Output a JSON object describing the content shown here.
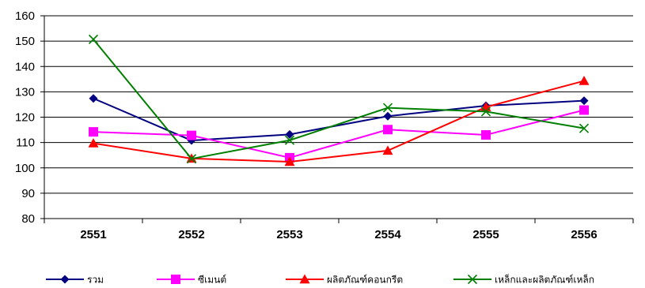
{
  "chart_data": {
    "type": "line",
    "title": "",
    "xlabel": "",
    "ylabel": "",
    "categories": [
      "2551",
      "2552",
      "2553",
      "2554",
      "2555",
      "2556"
    ],
    "ylim": [
      80,
      160
    ],
    "yticks": [
      80,
      90,
      100,
      110,
      120,
      130,
      140,
      150,
      160
    ],
    "grid": true,
    "legend_position": "bottom",
    "series": [
      {
        "name": "รวม",
        "color": "#000080",
        "marker": "diamond",
        "values": [
          127.4,
          110.8,
          113.2,
          120.4,
          124.5,
          126.5
        ]
      },
      {
        "name": "ซีเมนต์",
        "color": "#ff00ff",
        "marker": "square",
        "values": [
          114.2,
          112.8,
          104.0,
          115.1,
          113.0,
          122.8
        ]
      },
      {
        "name": "ผลิตภัณฑ์คอนกรีต",
        "color": "#ff0000",
        "marker": "triangle",
        "values": [
          109.7,
          103.7,
          102.4,
          106.8,
          124.0,
          134.3
        ]
      },
      {
        "name": "เหล็กและผลิตภัณฑ์เหล็ก",
        "color": "#008000",
        "marker": "x",
        "values": [
          150.7,
          103.6,
          110.9,
          123.7,
          122.2,
          115.6
        ]
      }
    ]
  }
}
